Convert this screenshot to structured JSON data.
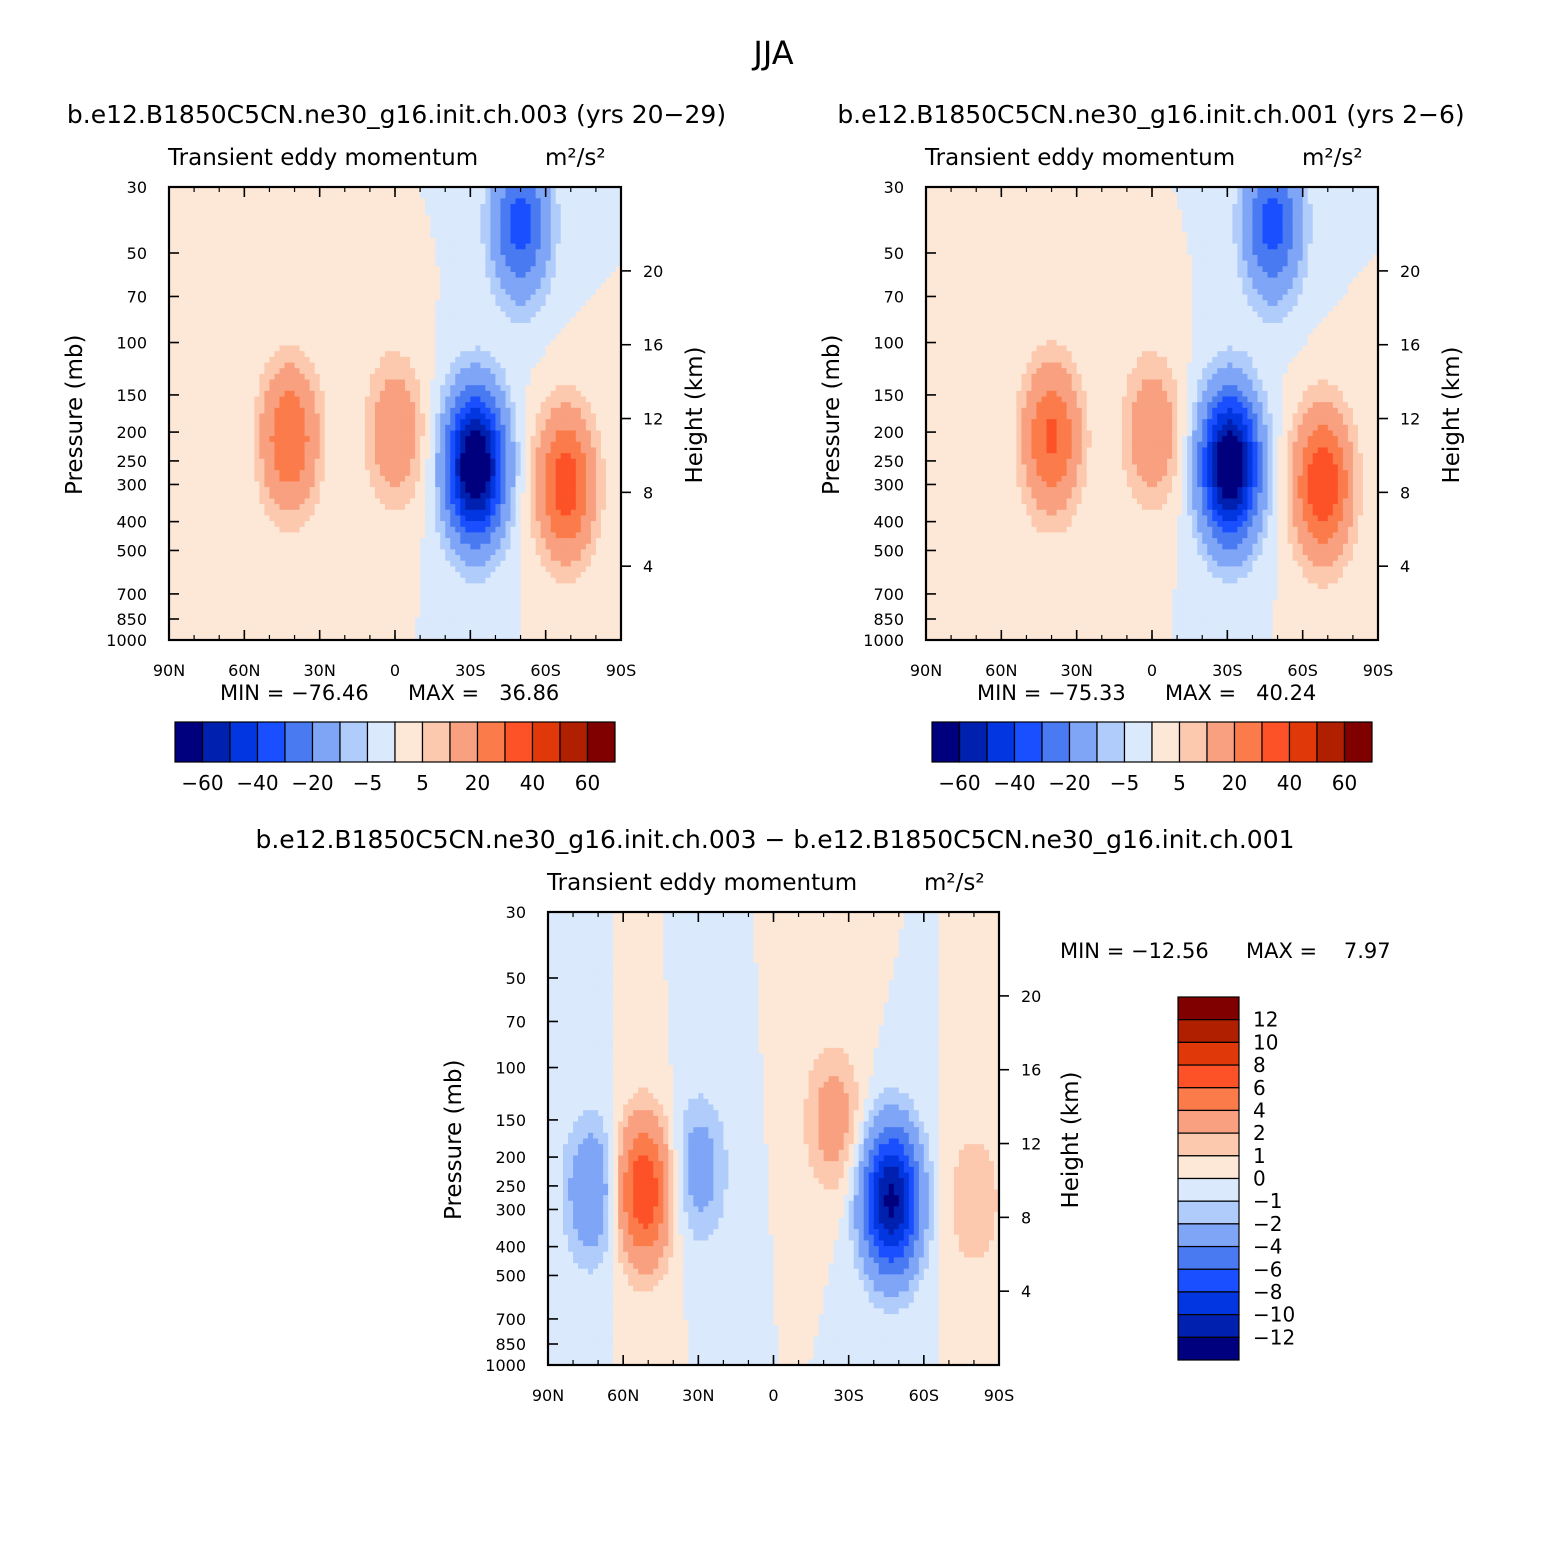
{
  "figure": {
    "title": "JJA"
  },
  "colors": {
    "scale": [
      "#00007f",
      "#0020b0",
      "#0236e0",
      "#1a4fff",
      "#4a7af2",
      "#7fa5f7",
      "#b0ccfa",
      "#dbe9fc",
      "#fde8d7",
      "#fcc8ae",
      "#f8a07f",
      "#fb7b4b",
      "#fd5128",
      "#e03808",
      "#b02000",
      "#800000"
    ]
  },
  "panels": {
    "p1": {
      "title": "b.e12.B1850C5CN.ne30_g16.init.ch.003 (yrs 20−29)",
      "var_label": "Transient eddy momentum",
      "units": "m²/s²",
      "ylabel": "Pressure (mb)",
      "y2label": "Height (km)",
      "min_label": "MIN = −76.46",
      "max_label": "MAX =   36.86",
      "min": -76.46,
      "max": 36.86
    },
    "p2": {
      "title": "b.e12.B1850C5CN.ne30_g16.init.ch.001 (yrs 2−6)",
      "var_label": "Transient eddy momentum",
      "units": "m²/s²",
      "ylabel": "Pressure (mb)",
      "y2label": "Height (km)",
      "min_label": "MIN = −75.33",
      "max_label": "MAX =   40.24",
      "min": -75.33,
      "max": 40.24
    },
    "p3": {
      "title": "b.e12.B1850C5CN.ne30_g16.init.ch.003 − b.e12.B1850C5CN.ne30_g16.init.ch.001",
      "var_label": "Transient eddy momentum",
      "units": "m²/s²",
      "ylabel": "Pressure (mb)",
      "y2label": "Height (km)",
      "min_label": "MIN = −12.56",
      "max_label": "MAX =    7.97",
      "min": -12.56,
      "max": 7.97
    }
  },
  "chart_data": [
    {
      "type": "heatmap",
      "title": "b.e12.B1850C5CN.ne30_g16.init.ch.003 (yrs 20−29)",
      "xlabel": "",
      "ylabel": "Pressure (mb)",
      "y2label": "Height (km)",
      "x_ticks": [
        "90N",
        "60N",
        "30N",
        "0",
        "30S",
        "60S",
        "90S"
      ],
      "y_ticks": [
        30,
        50,
        70,
        100,
        150,
        200,
        250,
        300,
        400,
        500,
        700,
        850,
        1000
      ],
      "y2_ticks": [
        4,
        8,
        12,
        16,
        20
      ],
      "colorbar_labels": [
        "−60",
        "−40",
        "−20",
        "−5",
        "5",
        "20",
        "40",
        "60"
      ],
      "contour_levels": [
        -70,
        -60,
        -50,
        -40,
        -30,
        -20,
        -10,
        -5,
        0,
        5,
        10,
        20,
        30,
        40,
        50,
        60,
        70
      ],
      "features": [
        {
          "lat": -32,
          "p": 260,
          "value": -76.46
        },
        {
          "lat": 42,
          "p": 210,
          "value": 30
        },
        {
          "lat": -68,
          "p": 300,
          "value": 36.86
        },
        {
          "lat": 0,
          "p": 200,
          "value": 18
        },
        {
          "lat": -50,
          "p": 40,
          "value": -35
        }
      ],
      "min": -76.46,
      "max": 36.86
    },
    {
      "type": "heatmap",
      "title": "b.e12.B1850C5CN.ne30_g16.init.ch.001 (yrs 2−6)",
      "xlabel": "",
      "ylabel": "Pressure (mb)",
      "y2label": "Height (km)",
      "x_ticks": [
        "90N",
        "60N",
        "30N",
        "0",
        "30S",
        "60S",
        "90S"
      ],
      "y_ticks": [
        30,
        50,
        70,
        100,
        150,
        200,
        250,
        300,
        400,
        500,
        700,
        850,
        1000
      ],
      "y2_ticks": [
        4,
        8,
        12,
        16,
        20
      ],
      "colorbar_labels": [
        "−60",
        "−40",
        "−20",
        "−5",
        "5",
        "20",
        "40",
        "60"
      ],
      "contour_levels": [
        -70,
        -60,
        -50,
        -40,
        -30,
        -20,
        -10,
        -5,
        0,
        5,
        10,
        20,
        30,
        40,
        50,
        60,
        70
      ],
      "features": [
        {
          "lat": -31,
          "p": 260,
          "value": -75.33
        },
        {
          "lat": 40,
          "p": 210,
          "value": 32
        },
        {
          "lat": -68,
          "p": 300,
          "value": 40.24
        },
        {
          "lat": 0,
          "p": 200,
          "value": 18
        },
        {
          "lat": -48,
          "p": 40,
          "value": -35
        }
      ],
      "min": -75.33,
      "max": 40.24
    },
    {
      "type": "heatmap",
      "title": "b.e12.B1850C5CN.ne30_g16.init.ch.003 − b.e12.B1850C5CN.ne30_g16.init.ch.001",
      "xlabel": "",
      "ylabel": "Pressure (mb)",
      "y2label": "Height (km)",
      "x_ticks": [
        "90N",
        "60N",
        "30N",
        "0",
        "30S",
        "60S",
        "90S"
      ],
      "y_ticks": [
        30,
        50,
        70,
        100,
        150,
        200,
        250,
        300,
        400,
        500,
        700,
        850,
        1000
      ],
      "y2_ticks": [
        4,
        8,
        12,
        16,
        20
      ],
      "colorbar_labels": [
        "12",
        "10",
        "8",
        "6",
        "4",
        "2",
        "1",
        "0",
        "−1",
        "−2",
        "−4",
        "−6",
        "−8",
        "−10",
        "−12"
      ],
      "contour_levels": [
        -14,
        -12,
        -10,
        -8,
        -6,
        -4,
        -2,
        -1,
        0,
        1,
        2,
        4,
        6,
        8,
        10,
        12,
        14
      ],
      "features": [
        {
          "lat": -47,
          "p": 280,
          "value": -12.56
        },
        {
          "lat": 52,
          "p": 260,
          "value": 7.97
        },
        {
          "lat": 72,
          "p": 260,
          "value": -4
        },
        {
          "lat": 30,
          "p": 220,
          "value": -3
        },
        {
          "lat": -24,
          "p": 150,
          "value": 3
        },
        {
          "lat": -80,
          "p": 280,
          "value": 2
        }
      ],
      "min": -12.56,
      "max": 7.97
    }
  ]
}
